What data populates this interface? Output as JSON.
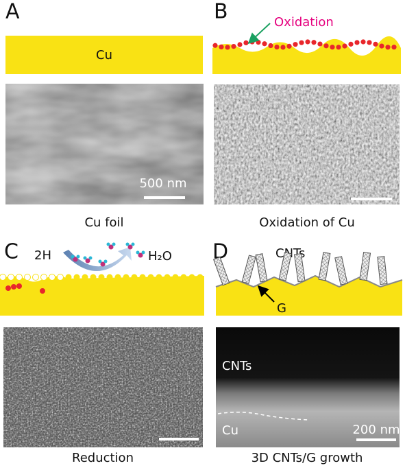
{
  "panels": [
    {
      "label": "A",
      "schematic_labels": [
        "Cu"
      ],
      "scale_bar": "500 nm",
      "caption": "Cu foil"
    },
    {
      "label": "B",
      "schematic_labels": [
        "Oxidation"
      ],
      "caption": "Oxidation of Cu"
    },
    {
      "label": "C",
      "schematic_labels": [
        "2H",
        "H₂O"
      ],
      "caption": "Reduction"
    },
    {
      "label": "D",
      "schematic_labels": [
        "CNTs",
        "G"
      ],
      "image_labels": [
        "CNTs",
        "Cu"
      ],
      "scale_bar": "200 nm",
      "caption": "3D CNTs/G growth"
    }
  ]
}
